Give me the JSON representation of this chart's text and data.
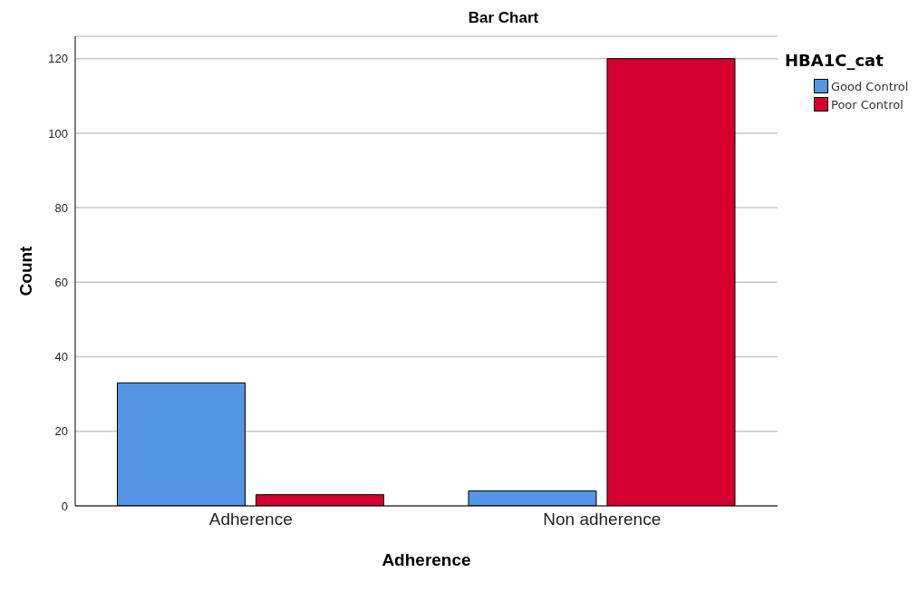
{
  "chart_data": {
    "type": "bar",
    "title": "Bar Chart",
    "xlabel": "Adherence",
    "ylabel": "Count",
    "legend_title": "HBA1C_cat",
    "categories": [
      "Adherence",
      "Non adherence"
    ],
    "series": [
      {
        "name": "Good Control",
        "color": "#5595e5",
        "values": [
          33,
          4
        ]
      },
      {
        "name": "Poor Control",
        "color": "#d5002f",
        "values": [
          3,
          120
        ]
      }
    ],
    "ylim": [
      0,
      126
    ],
    "yticks": [
      0,
      20,
      40,
      60,
      80,
      100,
      120
    ],
    "grid": "y",
    "legend": "top right"
  }
}
